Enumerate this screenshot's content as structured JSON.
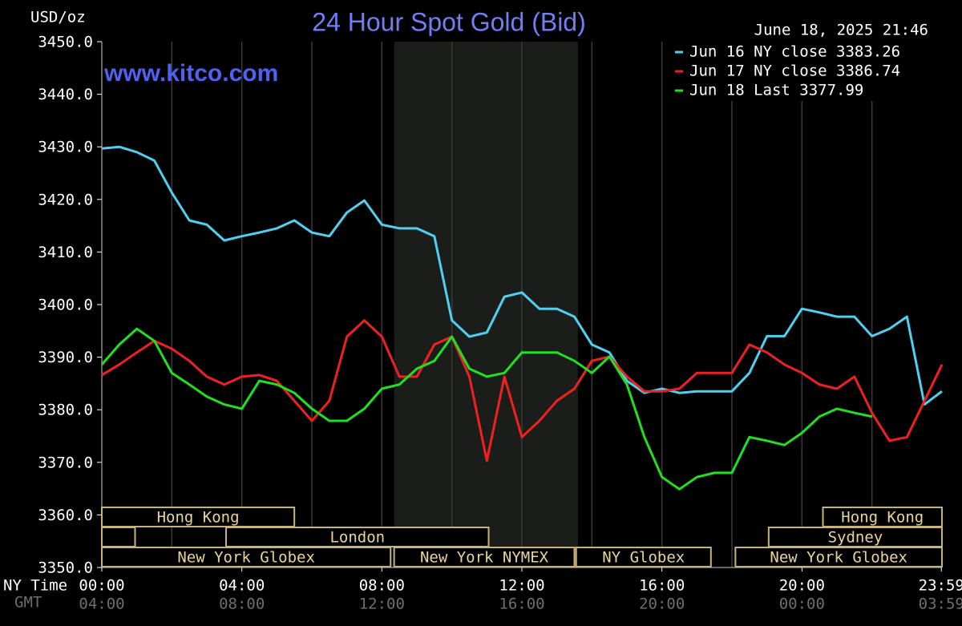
{
  "chart_data": {
    "type": "line",
    "title": "24 Hour Spot Gold (Bid)",
    "y_label": "USD/oz",
    "timestamp": "June 18, 2025 21:46",
    "site": "www.kitco.com",
    "x_label": "NY Time",
    "x2_label": "GMT",
    "xlim": [
      0,
      24
    ],
    "ylim": [
      3350,
      3450
    ],
    "yticks": [
      {
        "value": 3350,
        "label": "3350.0"
      },
      {
        "value": 3360,
        "label": "3360.0"
      },
      {
        "value": 3370,
        "label": "3370.0"
      },
      {
        "value": 3380,
        "label": "3380.0"
      },
      {
        "value": 3390,
        "label": "3390.0"
      },
      {
        "value": 3400,
        "label": "3400.0"
      },
      {
        "value": 3410,
        "label": "3410.0"
      },
      {
        "value": 3420,
        "label": "3420.0"
      },
      {
        "value": 3430,
        "label": "3430.0"
      },
      {
        "value": 3440,
        "label": "3440.0"
      },
      {
        "value": 3450,
        "label": "3450.0"
      }
    ],
    "xticks": [
      {
        "value": 0,
        "label": "00:00"
      },
      {
        "value": 4,
        "label": "04:00"
      },
      {
        "value": 8,
        "label": "08:00"
      },
      {
        "value": 12,
        "label": "12:00"
      },
      {
        "value": 16,
        "label": "16:00"
      },
      {
        "value": 20,
        "label": "20:00"
      },
      {
        "value": 23.983,
        "label": "23:59"
      }
    ],
    "x2ticks": [
      {
        "value": 0,
        "label": "04:00"
      },
      {
        "value": 4,
        "label": "08:00"
      },
      {
        "value": 8,
        "label": "12:00"
      },
      {
        "value": 12,
        "label": "16:00"
      },
      {
        "value": 16,
        "label": "20:00"
      },
      {
        "value": 20,
        "label": "00:00"
      },
      {
        "value": 23.983,
        "label": "03:59"
      }
    ],
    "xgrid": [
      2,
      4,
      6,
      8,
      10,
      12,
      14,
      16,
      18,
      20,
      22
    ],
    "shade": [
      8.35,
      13.6
    ],
    "sessions": [
      {
        "name": "Hong Kong",
        "start": 0,
        "end": 5.5,
        "row": 0
      },
      {
        "name": "Hong Kong",
        "start": 20.6,
        "end": 24,
        "row": 0
      },
      {
        "name": null,
        "start": 0,
        "end": 0.95,
        "row": 1
      },
      {
        "name": "London",
        "start": 3.55,
        "end": 11.05,
        "row": 1
      },
      {
        "name": "Sydney",
        "start": 19.05,
        "end": 24,
        "row": 1
      },
      {
        "name": "New York Globex",
        "start": 0,
        "end": 8.25,
        "row": 2
      },
      {
        "name": "New York NYMEX",
        "start": 8.35,
        "end": 13.5,
        "row": 2
      },
      {
        "name": "NY Globex",
        "start": 13.55,
        "end": 17.4,
        "row": 2
      },
      {
        "name": "New York Globex",
        "start": 18.1,
        "end": 24,
        "row": 2
      }
    ],
    "x": [
      0,
      0.5,
      1,
      1.5,
      2,
      2.5,
      3,
      3.5,
      4,
      4.5,
      5,
      5.5,
      6,
      6.5,
      7,
      7.5,
      8,
      8.5,
      9,
      9.5,
      10,
      10.5,
      11,
      11.5,
      12,
      12.5,
      13,
      13.5,
      14,
      14.5,
      15,
      15.5,
      16,
      16.5,
      17,
      17.5,
      18,
      18.5,
      19,
      19.5,
      20,
      20.5,
      21,
      21.5,
      22,
      22.5,
      23,
      23.5,
      24
    ],
    "series": [
      {
        "name": "Jun 16 NY close 3383.26",
        "color": "#4fd0f0",
        "values": [
          3429.7,
          3430,
          3429,
          3427.4,
          3421.3,
          3416,
          3415.2,
          3412.2,
          3413,
          3413.7,
          3414.5,
          3416,
          3413.7,
          3413,
          3417.5,
          3419.8,
          3415.2,
          3414.5,
          3414.5,
          3413,
          3397,
          3393.9,
          3394.7,
          3401.5,
          3402.3,
          3399.2,
          3399.2,
          3397.7,
          3392.4,
          3390.9,
          3385.5,
          3383.2,
          3384,
          3383.2,
          3383.5,
          3383.5,
          3383.5,
          3387,
          3394,
          3394,
          3399.2,
          3398.5,
          3397.7,
          3397.7,
          3394,
          3395.4,
          3397.7,
          3381,
          3383.5
        ]
      },
      {
        "name": "Jun 17 NY close 3386.74",
        "color": "#f02020",
        "values": [
          3386.6,
          3388.6,
          3390.9,
          3393.1,
          3391.6,
          3389.3,
          3386.3,
          3384.8,
          3386.3,
          3386.6,
          3385.5,
          3381.7,
          3377.9,
          3381.7,
          3393.9,
          3397,
          3393.9,
          3386.3,
          3386.3,
          3392.4,
          3393.9,
          3386.3,
          3370.3,
          3386.3,
          3374.8,
          3377.9,
          3381.7,
          3384,
          3389.3,
          3390.1,
          3386.3,
          3383.5,
          3383.5,
          3384,
          3387,
          3387,
          3387,
          3392.4,
          3390.9,
          3388.6,
          3387,
          3384.8,
          3384,
          3386.3,
          3379.4,
          3374.1,
          3374.8,
          3381.7,
          3388.6
        ]
      },
      {
        "name": "Jun 18 Last 3377.99",
        "color": "#20e020",
        "values": [
          3388.6,
          3392.4,
          3395.4,
          3393.1,
          3387,
          3384.8,
          3382.5,
          3381,
          3380.2,
          3385.5,
          3384.8,
          3383.2,
          3380.2,
          3377.9,
          3377.9,
          3380.2,
          3384,
          3384.8,
          3387.8,
          3389.3,
          3393.9,
          3387.8,
          3386.3,
          3387,
          3390.9,
          3390.9,
          3390.9,
          3389.3,
          3387,
          3390.1,
          3384.8,
          3374.8,
          3367.2,
          3364.9,
          3367.2,
          3368,
          3368,
          3374.8,
          3374.1,
          3373.3,
          3375.6,
          3378.7,
          3380.2,
          3379.4,
          3378.7,
          null,
          null,
          null,
          null
        ]
      }
    ]
  }
}
